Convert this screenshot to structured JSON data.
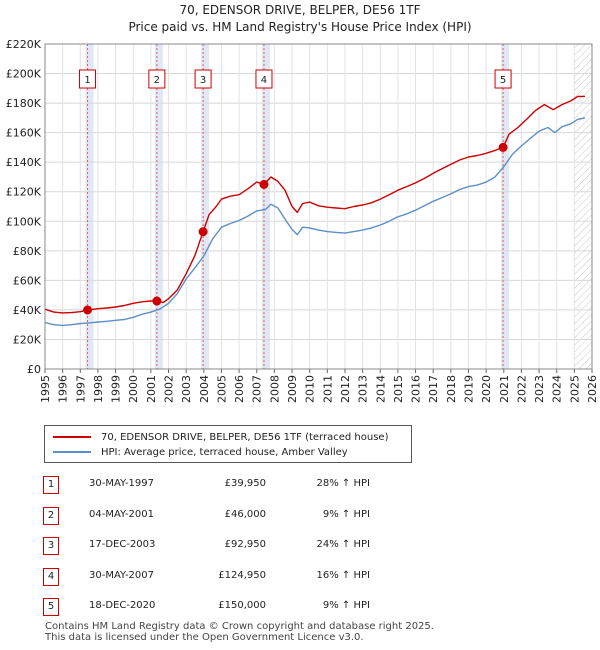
{
  "chart_data": {
    "type": "line",
    "title": "70, EDENSOR DRIVE, BELPER, DE56 1TF",
    "subtitle": "Price paid vs. HM Land Registry's House Price Index (HPI)",
    "y_ticks": [
      "£0",
      "£20K",
      "£40K",
      "£60K",
      "£80K",
      "£100K",
      "£120K",
      "£140K",
      "£160K",
      "£180K",
      "£200K",
      "£220K"
    ],
    "ylim": [
      0,
      220000
    ],
    "xlim": [
      1995,
      2026
    ],
    "x_ticks": [
      "1995",
      "1996",
      "1997",
      "1998",
      "1999",
      "2000",
      "2001",
      "2002",
      "2003",
      "2004",
      "2005",
      "2006",
      "2007",
      "2008",
      "2009",
      "2010",
      "2011",
      "2012",
      "2013",
      "2014",
      "2015",
      "2016",
      "2017",
      "2018",
      "2019",
      "2020",
      "2021",
      "2022",
      "2023",
      "2024",
      "2025",
      "2026"
    ],
    "hatch_from": 2025.0,
    "series": [
      {
        "name": "70, EDENSOR DRIVE, BELPER, DE56 1TF (terraced house)",
        "color": "#cc0000",
        "points": [
          [
            1995.0,
            40500
          ],
          [
            1995.5,
            38500
          ],
          [
            1996.0,
            38000
          ],
          [
            1996.5,
            38200
          ],
          [
            1997.0,
            38800
          ],
          [
            1997.41,
            39950
          ],
          [
            1998.0,
            40800
          ],
          [
            1998.5,
            41300
          ],
          [
            1999.0,
            42000
          ],
          [
            1999.5,
            43000
          ],
          [
            2000.0,
            44500
          ],
          [
            2000.5,
            45500
          ],
          [
            2001.0,
            46000
          ],
          [
            2001.34,
            46000
          ],
          [
            2001.7,
            45000
          ],
          [
            2002.0,
            47500
          ],
          [
            2002.5,
            53500
          ],
          [
            2003.0,
            64500
          ],
          [
            2003.5,
            77000
          ],
          [
            2003.96,
            92950
          ],
          [
            2004.3,
            104500
          ],
          [
            2004.7,
            110000
          ],
          [
            2005.0,
            115000
          ],
          [
            2005.5,
            117000
          ],
          [
            2006.0,
            118000
          ],
          [
            2006.5,
            122000
          ],
          [
            2007.0,
            126500
          ],
          [
            2007.41,
            124950
          ],
          [
            2007.8,
            130000
          ],
          [
            2008.2,
            127000
          ],
          [
            2008.6,
            121000
          ],
          [
            2009.0,
            110000
          ],
          [
            2009.3,
            106000
          ],
          [
            2009.6,
            112000
          ],
          [
            2010.0,
            113000
          ],
          [
            2010.5,
            110500
          ],
          [
            2011.0,
            109500
          ],
          [
            2011.5,
            109000
          ],
          [
            2012.0,
            108500
          ],
          [
            2012.5,
            110000
          ],
          [
            2013.0,
            111000
          ],
          [
            2013.5,
            112500
          ],
          [
            2014.0,
            115000
          ],
          [
            2014.5,
            118000
          ],
          [
            2015.0,
            121000
          ],
          [
            2015.5,
            123500
          ],
          [
            2016.0,
            126000
          ],
          [
            2016.5,
            129000
          ],
          [
            2017.0,
            132500
          ],
          [
            2017.5,
            135500
          ],
          [
            2018.0,
            138500
          ],
          [
            2018.5,
            141500
          ],
          [
            2019.0,
            143500
          ],
          [
            2019.5,
            144500
          ],
          [
            2020.0,
            146000
          ],
          [
            2020.5,
            148000
          ],
          [
            2020.96,
            150000
          ],
          [
            2021.3,
            159000
          ],
          [
            2021.8,
            163500
          ],
          [
            2022.3,
            169000
          ],
          [
            2022.8,
            175000
          ],
          [
            2023.3,
            179000
          ],
          [
            2023.8,
            175500
          ],
          [
            2024.3,
            179000
          ],
          [
            2024.8,
            181500
          ],
          [
            2025.2,
            184500
          ],
          [
            2025.6,
            184500
          ]
        ]
      },
      {
        "name": "HPI: Average price, terraced house, Amber Valley",
        "color": "#5b8fc9",
        "points": [
          [
            1995.0,
            31500
          ],
          [
            1995.5,
            30000
          ],
          [
            1996.0,
            29500
          ],
          [
            1996.5,
            30000
          ],
          [
            1997.0,
            30800
          ],
          [
            1997.5,
            31200
          ],
          [
            1998.0,
            31800
          ],
          [
            1998.5,
            32300
          ],
          [
            1999.0,
            33000
          ],
          [
            1999.5,
            33500
          ],
          [
            2000.0,
            35000
          ],
          [
            2000.5,
            37000
          ],
          [
            2001.0,
            38500
          ],
          [
            2001.5,
            40500
          ],
          [
            2002.0,
            44500
          ],
          [
            2002.5,
            51000
          ],
          [
            2003.0,
            61000
          ],
          [
            2003.5,
            68500
          ],
          [
            2004.0,
            76500
          ],
          [
            2004.5,
            88000
          ],
          [
            2005.0,
            96000
          ],
          [
            2005.5,
            98500
          ],
          [
            2006.0,
            100500
          ],
          [
            2006.5,
            103500
          ],
          [
            2007.0,
            107000
          ],
          [
            2007.5,
            108000
          ],
          [
            2007.8,
            111500
          ],
          [
            2008.2,
            109000
          ],
          [
            2008.6,
            101500
          ],
          [
            2009.0,
            94500
          ],
          [
            2009.3,
            91000
          ],
          [
            2009.6,
            96000
          ],
          [
            2010.0,
            95500
          ],
          [
            2010.5,
            94000
          ],
          [
            2011.0,
            93000
          ],
          [
            2011.5,
            92500
          ],
          [
            2012.0,
            92000
          ],
          [
            2012.5,
            93000
          ],
          [
            2013.0,
            94000
          ],
          [
            2013.5,
            95500
          ],
          [
            2014.0,
            97500
          ],
          [
            2014.5,
            100000
          ],
          [
            2015.0,
            103000
          ],
          [
            2015.5,
            105000
          ],
          [
            2016.0,
            107500
          ],
          [
            2016.5,
            110500
          ],
          [
            2017.0,
            113500
          ],
          [
            2017.5,
            116000
          ],
          [
            2018.0,
            118500
          ],
          [
            2018.5,
            121500
          ],
          [
            2019.0,
            123500
          ],
          [
            2019.5,
            124500
          ],
          [
            2020.0,
            126500
          ],
          [
            2020.5,
            130000
          ],
          [
            2021.0,
            137000
          ],
          [
            2021.5,
            145500
          ],
          [
            2022.0,
            151000
          ],
          [
            2022.5,
            156000
          ],
          [
            2023.0,
            161000
          ],
          [
            2023.5,
            163500
          ],
          [
            2023.9,
            160000
          ],
          [
            2024.3,
            164000
          ],
          [
            2024.8,
            166000
          ],
          [
            2025.2,
            169000
          ],
          [
            2025.6,
            170000
          ]
        ]
      }
    ],
    "sales": [
      {
        "n": "1",
        "date": "30-MAY-1997",
        "price": "£39,950",
        "hpi": "28% ↑ HPI",
        "x": 1997.41,
        "y": 39950
      },
      {
        "n": "2",
        "date": "04-MAY-2001",
        "price": "£46,000",
        "hpi": "9% ↑ HPI",
        "x": 2001.34,
        "y": 46000
      },
      {
        "n": "3",
        "date": "17-DEC-2003",
        "price": "£92,950",
        "hpi": "24% ↑ HPI",
        "x": 2003.96,
        "y": 92950
      },
      {
        "n": "4",
        "date": "30-MAY-2007",
        "price": "£124,950",
        "hpi": "16% ↑ HPI",
        "x": 2007.41,
        "y": 124950
      },
      {
        "n": "5",
        "date": "18-DEC-2020",
        "price": "£150,000",
        "hpi": "9% ↑ HPI",
        "x": 2020.96,
        "y": 150000
      }
    ]
  },
  "legend": {
    "property_label": "70, EDENSOR DRIVE, BELPER, DE56 1TF (terraced house)",
    "hpi_label": "HPI: Average price, terraced house, Amber Valley"
  },
  "footer": {
    "line1": "Contains HM Land Registry data © Crown copyright and database right 2025.",
    "line2": "This data is licensed under the Open Government Licence v3.0."
  }
}
